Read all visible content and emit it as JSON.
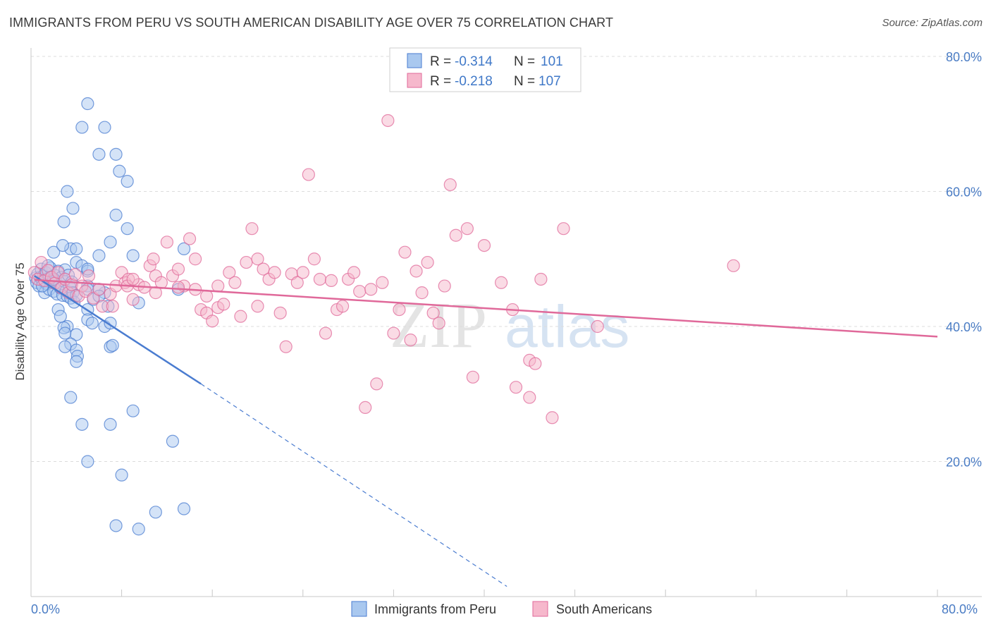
{
  "chart_data": {
    "type": "scatter",
    "title": "IMMIGRANTS FROM PERU VS SOUTH AMERICAN DISABILITY AGE OVER 75 CORRELATION CHART",
    "source": "Source: ZipAtlas.com",
    "xlabel": "",
    "ylabel": "Disability Age Over 75",
    "xlim": [
      0,
      80
    ],
    "ylim": [
      0,
      80
    ],
    "x_tick_labels": [
      "0.0%",
      "80.0%"
    ],
    "y_tick_labels": [
      "20.0%",
      "40.0%",
      "60.0%",
      "80.0%"
    ],
    "y_tick_values": [
      20,
      40,
      60,
      80
    ],
    "grid": true,
    "watermark": {
      "zip": "ZIP",
      "atlas": "atlas"
    },
    "legend": [
      {
        "swatch_color": "#a9c8ef",
        "r_label": "R = ",
        "r_value": "-0.314",
        "n_label": "N = ",
        "n_value": "101"
      },
      {
        "swatch_color": "#f6b8cc",
        "r_label": "R = ",
        "r_value": "-0.218",
        "n_label": "N = ",
        "n_value": "107"
      }
    ],
    "series": [
      {
        "name": "Immigrants from Peru",
        "color": "#4a7cd0",
        "fill": "#a9c8ef",
        "trend_solid": [
          [
            0.3,
            47.5
          ],
          [
            15,
            31.5
          ]
        ],
        "trend_dashed": [
          [
            15,
            31.5
          ],
          [
            42,
            1.5
          ]
        ],
        "points": [
          [
            0.4,
            47.2
          ],
          [
            0.5,
            46.5
          ],
          [
            0.6,
            47.8
          ],
          [
            0.7,
            46
          ],
          [
            0.8,
            47.3
          ],
          [
            0.9,
            48.5
          ],
          [
            1,
            46.8
          ],
          [
            1.1,
            47.5
          ],
          [
            1.2,
            45
          ],
          [
            1.3,
            48
          ],
          [
            1.4,
            46.3
          ],
          [
            1.5,
            47
          ],
          [
            1.6,
            45.5
          ],
          [
            1.7,
            48.7
          ],
          [
            1.8,
            47.2
          ],
          [
            1.9,
            46.5
          ],
          [
            2,
            45.2
          ],
          [
            2.1,
            47.6
          ],
          [
            2.2,
            46.8
          ],
          [
            2.3,
            44.8
          ],
          [
            2.4,
            48.2
          ],
          [
            2.5,
            46
          ],
          [
            2.6,
            45.7
          ],
          [
            2.7,
            47.3
          ],
          [
            2.8,
            44.6
          ],
          [
            2.9,
            46.7
          ],
          [
            3,
            48.4
          ],
          [
            3.1,
            45.3
          ],
          [
            3.2,
            44.5
          ],
          [
            3.3,
            47.6
          ],
          [
            3.4,
            45.9
          ],
          [
            3.5,
            44.2
          ],
          [
            3.6,
            46.6
          ],
          [
            3.7,
            45
          ],
          [
            3.8,
            43.6
          ],
          [
            2,
            51
          ],
          [
            2.4,
            42.5
          ],
          [
            2.6,
            41.5
          ],
          [
            3.2,
            40
          ],
          [
            2.9,
            39.8
          ],
          [
            3,
            39
          ],
          [
            4,
            38.8
          ],
          [
            3.5,
            37.4
          ],
          [
            4,
            36.5
          ],
          [
            4.1,
            35.6
          ],
          [
            4,
            34.8
          ],
          [
            3.5,
            51.5
          ],
          [
            2.8,
            52
          ],
          [
            4,
            51.5
          ],
          [
            4,
            49.5
          ],
          [
            4.5,
            49
          ],
          [
            5,
            48.2
          ],
          [
            5,
            48.5
          ],
          [
            5,
            46
          ],
          [
            5,
            42.5
          ],
          [
            5,
            41
          ],
          [
            5.4,
            40.5
          ],
          [
            5.5,
            44
          ],
          [
            6.5,
            45
          ],
          [
            6.8,
            43
          ],
          [
            6.5,
            40
          ],
          [
            7,
            40.5
          ],
          [
            7,
            37
          ],
          [
            7.2,
            37.2
          ],
          [
            7,
            52.5
          ],
          [
            7.5,
            56.5
          ],
          [
            6,
            50.5
          ],
          [
            9,
            50.5
          ],
          [
            9.5,
            43.5
          ],
          [
            8.5,
            54.5
          ],
          [
            8.5,
            61.5
          ],
          [
            7.8,
            63
          ],
          [
            7.5,
            65.5
          ],
          [
            6,
            65.5
          ],
          [
            6.5,
            69.5
          ],
          [
            4.5,
            69.5
          ],
          [
            5,
            73
          ],
          [
            3.2,
            60
          ],
          [
            3.7,
            57.5
          ],
          [
            2.9,
            55.5
          ],
          [
            13.5,
            51.5
          ],
          [
            13,
            45.5
          ],
          [
            6,
            45.5
          ],
          [
            6,
            44.5
          ],
          [
            3,
            37
          ],
          [
            3.5,
            29.5
          ],
          [
            4.5,
            25.5
          ],
          [
            7,
            25.5
          ],
          [
            9,
            27.5
          ],
          [
            12.5,
            23
          ],
          [
            5,
            20
          ],
          [
            8,
            18
          ],
          [
            7.5,
            10.5
          ],
          [
            9.5,
            10
          ],
          [
            11,
            12.5
          ],
          [
            13.5,
            13
          ],
          [
            5,
            45.5
          ],
          [
            4,
            44.6
          ],
          [
            1,
            46
          ],
          [
            2,
            47
          ],
          [
            1.5,
            49
          ]
        ]
      },
      {
        "name": "South Americans",
        "color": "#e0699a",
        "fill": "#f6b8cc",
        "trend_solid": [
          [
            0.3,
            46.9
          ],
          [
            80,
            38.5
          ]
        ],
        "points": [
          [
            0.3,
            48
          ],
          [
            0.6,
            47
          ],
          [
            0.9,
            49.5
          ],
          [
            1.2,
            46.8
          ],
          [
            1.5,
            48.3
          ],
          [
            1.8,
            47.3
          ],
          [
            2.1,
            46.4
          ],
          [
            2.4,
            48
          ],
          [
            2.7,
            45.7
          ],
          [
            3,
            47
          ],
          [
            3.3,
            45
          ],
          [
            3.6,
            46.2
          ],
          [
            3.9,
            47.7
          ],
          [
            4.2,
            44.5
          ],
          [
            4.5,
            46
          ],
          [
            4.8,
            45.2
          ],
          [
            5.1,
            47.5
          ],
          [
            5.5,
            44.2
          ],
          [
            6,
            45.5
          ],
          [
            6.3,
            43
          ],
          [
            7,
            44.8
          ],
          [
            7.2,
            43
          ],
          [
            7.5,
            46
          ],
          [
            8,
            48
          ],
          [
            8.3,
            46.5
          ],
          [
            8.6,
            47
          ],
          [
            9,
            44
          ],
          [
            9.5,
            46.2
          ],
          [
            10,
            45.8
          ],
          [
            10.5,
            49
          ],
          [
            10.8,
            50
          ],
          [
            11,
            47.5
          ],
          [
            11.5,
            46.5
          ],
          [
            12,
            52.5
          ],
          [
            12.5,
            47.5
          ],
          [
            13,
            48.5
          ],
          [
            13.5,
            46
          ],
          [
            14,
            53
          ],
          [
            14.5,
            50
          ],
          [
            14.5,
            45.5
          ],
          [
            15,
            42.5
          ],
          [
            15.5,
            42
          ],
          [
            16,
            40.8
          ],
          [
            16.5,
            42.8
          ],
          [
            17,
            43.3
          ],
          [
            17.5,
            48
          ],
          [
            18,
            46.5
          ],
          [
            18.5,
            41.5
          ],
          [
            19,
            49.5
          ],
          [
            19.5,
            54.5
          ],
          [
            20,
            50
          ],
          [
            20.5,
            48.5
          ],
          [
            21,
            47
          ],
          [
            21.5,
            48
          ],
          [
            22,
            42
          ],
          [
            22.5,
            37
          ],
          [
            23,
            47.8
          ],
          [
            23.5,
            46.5
          ],
          [
            24,
            48
          ],
          [
            24.5,
            62.5
          ],
          [
            25,
            50
          ],
          [
            25.5,
            47
          ],
          [
            26,
            39
          ],
          [
            26.5,
            46.8
          ],
          [
            27,
            42.5
          ],
          [
            27.5,
            43
          ],
          [
            28,
            47
          ],
          [
            28.5,
            48
          ],
          [
            29,
            45.2
          ],
          [
            29.5,
            28
          ],
          [
            30,
            45.5
          ],
          [
            30.5,
            31.5
          ],
          [
            31,
            46.5
          ],
          [
            31.5,
            70.5
          ],
          [
            32,
            39
          ],
          [
            32.5,
            42.5
          ],
          [
            33,
            51
          ],
          [
            33.5,
            38
          ],
          [
            34,
            48.2
          ],
          [
            34.5,
            45
          ],
          [
            35,
            49.5
          ],
          [
            35.5,
            42
          ],
          [
            36,
            40.5
          ],
          [
            36.5,
            46
          ],
          [
            37,
            61
          ],
          [
            37.5,
            53.5
          ],
          [
            38.5,
            54.5
          ],
          [
            39,
            32.5
          ],
          [
            40,
            52
          ],
          [
            41.5,
            46.5
          ],
          [
            42.5,
            42.5
          ],
          [
            42.8,
            31
          ],
          [
            44,
            35
          ],
          [
            44.5,
            34.5
          ],
          [
            44,
            29.5
          ],
          [
            47,
            54.5
          ],
          [
            45,
            47
          ],
          [
            46,
            26.5
          ],
          [
            50,
            40
          ],
          [
            62,
            49
          ],
          [
            8.5,
            46
          ],
          [
            9,
            47
          ],
          [
            11,
            45
          ],
          [
            13,
            45.8
          ],
          [
            15.5,
            44.5
          ],
          [
            16.5,
            46
          ],
          [
            20,
            43
          ]
        ]
      }
    ],
    "bottom_legend": [
      "Immigrants from Peru",
      "South Americans"
    ]
  }
}
